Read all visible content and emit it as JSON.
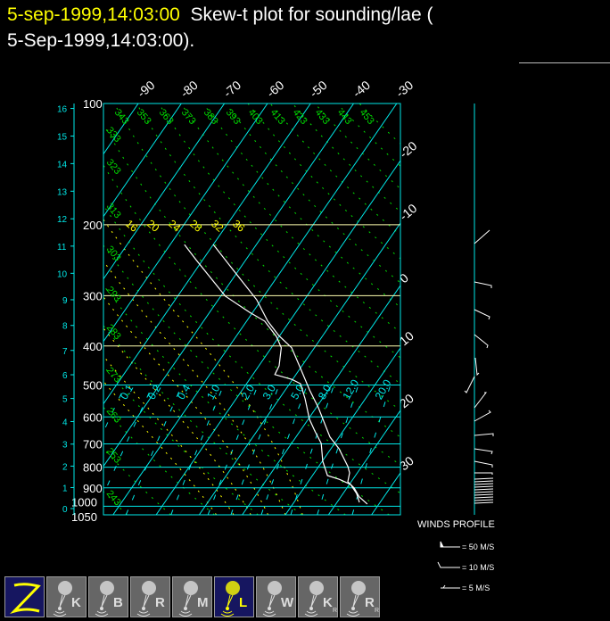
{
  "header": {
    "date_highlight": "5-sep-1999,14:03:00",
    "title_rest": "  Skew-t plot for sounding/lae (",
    "title_line2": "5-Sep-1999,14:03:00)."
  },
  "chart_data": {
    "type": "skew-t",
    "pressure_axis": {
      "ticks": [
        100,
        200,
        300,
        400,
        500,
        600,
        700,
        800,
        900,
        1000,
        1050
      ],
      "range_hpa": [
        1050,
        100
      ],
      "scale": "log"
    },
    "height_axis_km": [
      0,
      1,
      2,
      3,
      4,
      5,
      6,
      7,
      8,
      9,
      10,
      11,
      12,
      13,
      14,
      15,
      16
    ],
    "isotherm_labels": [
      "-90",
      "-80",
      "-70",
      "-60",
      "-50",
      "-40",
      "-30",
      "-20",
      "-10",
      "0",
      "10",
      "20",
      "30"
    ],
    "dry_adiabat_labels": [
      "243",
      "253",
      "263",
      "273",
      "283",
      "293",
      "303",
      "313",
      "323",
      "333",
      "343",
      "353",
      "363",
      "373",
      "383",
      "393",
      "403",
      "413",
      "423",
      "433",
      "443",
      "453"
    ],
    "moist_adiabat_labels": [
      "16",
      "20",
      "24",
      "28",
      "32",
      "36"
    ],
    "mixing_ratio_labels": [
      "0.1",
      "0.2",
      "0.4",
      "1.0",
      "2.0",
      "3.0",
      "5.0",
      "8.0",
      "12.0",
      "20.0"
    ],
    "temperature": {
      "p": [
        224,
        260,
        307,
        347,
        377,
        404,
        455,
        514,
        569,
        673,
        720,
        797,
        826,
        869,
        901,
        948,
        987
      ],
      "t": [
        -50.0,
        -41.1,
        -31.1,
        -25.1,
        -20.2,
        -15.3,
        -9.9,
        -4.4,
        0.5,
        7.9,
        11.9,
        16.8,
        18.2,
        19.2,
        21.7,
        24.3,
        27.3
      ]
    },
    "dewpoint": {
      "p": [
        224,
        245,
        301,
        330,
        347,
        379,
        404,
        448,
        471,
        484,
        496,
        541,
        608,
        650,
        698,
        773,
        839,
        856,
        883,
        929,
        978
      ],
      "t": [
        -56.7,
        -51.4,
        -38.9,
        -30.7,
        -25.8,
        -20.6,
        -17.7,
        -15.3,
        -14.9,
        -10.2,
        -7.5,
        -4.0,
        0.3,
        3.4,
        6.9,
        10.1,
        13.5,
        16.7,
        20.3,
        23.1,
        25.2
      ]
    },
    "colors": {
      "isotherm": "#00e8e8",
      "pressure": "#00e8e8",
      "upper_pressure": "#ffffb0",
      "dry_adiabat": "#00dd00",
      "moist_adiabat": "#ffff00",
      "mixing_ratio": "#00e8e8",
      "sounding": "#ffffff"
    }
  },
  "wind_legend": {
    "title": "WINDS PROFILE",
    "items": [
      "= 50 M/S",
      "= 10 M/S",
      "= 5 M/S"
    ]
  },
  "toolbar": {
    "buttons": [
      {
        "id": "z",
        "letter": "",
        "sub": "",
        "active": true
      },
      {
        "id": "k",
        "letter": "K",
        "sub": "",
        "active": false
      },
      {
        "id": "b",
        "letter": "B",
        "sub": "",
        "active": false
      },
      {
        "id": "r",
        "letter": "R",
        "sub": "",
        "active": false
      },
      {
        "id": "m",
        "letter": "M",
        "sub": "",
        "active": false
      },
      {
        "id": "l",
        "letter": "L",
        "sub": "",
        "active": true
      },
      {
        "id": "w",
        "letter": "W",
        "sub": "",
        "active": false
      },
      {
        "id": "kr",
        "letter": "K",
        "sub": "R",
        "active": false
      },
      {
        "id": "rr",
        "letter": "R",
        "sub": "R",
        "active": false
      }
    ]
  }
}
